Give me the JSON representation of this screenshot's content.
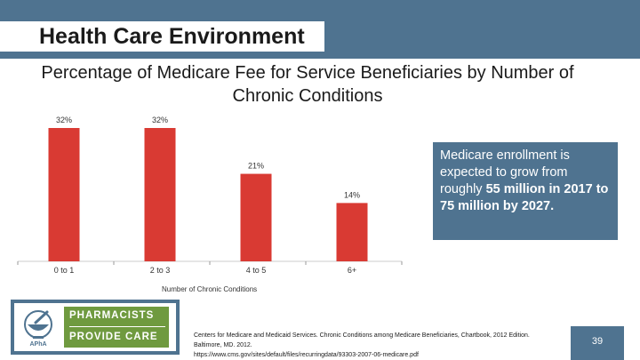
{
  "header": {
    "title": "Health Care Environment"
  },
  "chart_data": {
    "type": "bar",
    "title": "Percentage of Medicare Fee for Service Beneficiaries by Number of Chronic Conditions",
    "xlabel": "Number of Chronic Conditions",
    "ylabel": "",
    "categories": [
      "0 to 1",
      "2 to 3",
      "4 to 5",
      "6+"
    ],
    "values": [
      32,
      32,
      21,
      14
    ],
    "data_labels": [
      "32%",
      "32%",
      "21%",
      "14%"
    ],
    "ylim": [
      0,
      32
    ],
    "color": "#d93a33",
    "grid": false,
    "legend": "none"
  },
  "callout": {
    "text_prefix": "Medicare enrollment is expected to grow from roughly ",
    "bold_1": "55 million in 2017",
    "text_mid": " ",
    "bold_2": "to 75 million by 2027."
  },
  "logo": {
    "line1": "PHARMACISTS",
    "line2": "PROVIDE CARE",
    "mark_text": "APhA"
  },
  "citation": {
    "line1": "Centers for Medicare and Medicaid Services. Chronic Conditions among Medicare Beneficiaries, Chartbook, 2012 Edition.",
    "line2": "Baltimore, MD. 2012.",
    "line3": "https://www.cms.gov/sites/default/files/recurringdata/93303-2007-06-medicare.pdf"
  },
  "footer": {
    "page_number": "39"
  },
  "colors": {
    "band": "#4f7390",
    "bar": "#d93a33",
    "logo_green": "#6f9a3f"
  }
}
